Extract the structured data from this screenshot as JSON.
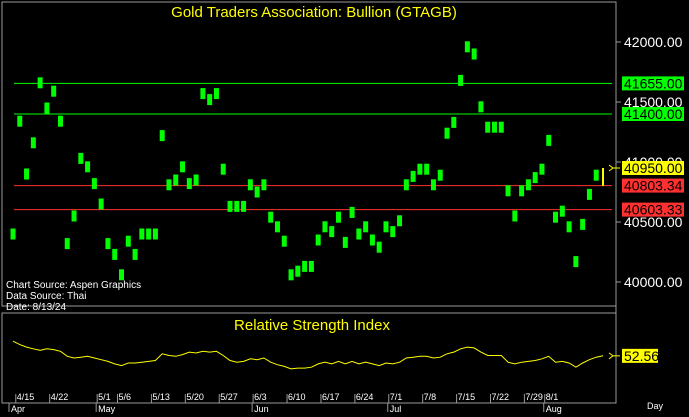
{
  "chart_data": [
    {
      "type": "bar",
      "title": "Gold Traders Association: Bullion (GTAGB)",
      "yticks": [
        "42000.00",
        "41500.00",
        "41000.00",
        "40500.00",
        "40000.00"
      ],
      "ylim": [
        39850,
        42300
      ],
      "grid": false,
      "x": [
        "4/12",
        "4/15",
        "4/16",
        "4/17",
        "4/18",
        "4/19",
        "4/22",
        "4/23",
        "4/24",
        "4/25",
        "4/26",
        "4/29",
        "4/30",
        "5/1",
        "5/2",
        "5/3",
        "5/6",
        "5/7",
        "5/8",
        "5/9",
        "5/10",
        "5/13",
        "5/14",
        "5/15",
        "5/16",
        "5/17",
        "5/20",
        "5/21",
        "5/22",
        "5/23",
        "5/24",
        "5/27",
        "5/28",
        "5/29",
        "5/30",
        "5/31",
        "6/3",
        "6/4",
        "6/5",
        "6/6",
        "6/7",
        "6/10",
        "6/11",
        "6/12",
        "6/13",
        "6/14",
        "6/17",
        "6/18",
        "6/19",
        "6/20",
        "6/21",
        "6/24",
        "6/25",
        "6/26",
        "6/27",
        "6/28",
        "7/1",
        "7/2",
        "7/3",
        "7/4",
        "7/5",
        "7/8",
        "7/9",
        "7/10",
        "7/11",
        "7/12",
        "7/15",
        "7/16",
        "7/17",
        "7/18",
        "7/19",
        "7/22",
        "7/23",
        "7/24",
        "7/25",
        "7/26",
        "7/29",
        "7/30",
        "7/31",
        "8/1",
        "8/2",
        "8/5",
        "8/6",
        "8/7",
        "8/8",
        "8/9",
        "8/12",
        "8/13"
      ],
      "values": [
        40400,
        41340,
        40900,
        41160,
        41660,
        41450,
        41590,
        41340,
        40320,
        40550,
        41030,
        40960,
        40820,
        40650,
        40320,
        40230,
        40060,
        40340,
        40230,
        40400,
        40400,
        40400,
        41220,
        40810,
        40850,
        40960,
        40820,
        40850,
        41570,
        41520,
        41570,
        40940,
        40630,
        40630,
        40630,
        40810,
        40750,
        40810,
        40540,
        40460,
        40340,
        40060,
        40090,
        40130,
        40130,
        40350,
        40460,
        40420,
        40540,
        40330,
        40580,
        40400,
        40460,
        40350,
        40290,
        40460,
        40420,
        40510,
        40810,
        40880,
        40940,
        40940,
        40810,
        40890,
        41240,
        41330,
        41680,
        41960,
        41900,
        41460,
        41290,
        41290,
        41290,
        40760,
        40550,
        40760,
        40810,
        40870,
        40940,
        41180,
        40540,
        40590,
        40460,
        40170,
        40480,
        40730,
        40890,
        40950
      ],
      "last_value": "40950.00",
      "hlines": [
        {
          "value": 41655,
          "label": "41655.00",
          "color": "#00ff00"
        },
        {
          "value": 41400,
          "label": "41400.00",
          "color": "#00ff00"
        },
        {
          "value": 40803.34,
          "label": "40803.34",
          "color": "#ff3030"
        },
        {
          "value": 40603.33,
          "label": "40603.33",
          "color": "#ff3030"
        }
      ],
      "bar_color": "#00ff00",
      "last_bar_color": "#ffff00",
      "source_lines": [
        "Chart Source: Aspen Graphics",
        "Data Source: Thai",
        "Date: 8/13/24"
      ]
    },
    {
      "type": "line",
      "title": "Relative Strength Index",
      "ylim": [
        0,
        100
      ],
      "grid": false,
      "color": "#ffff00",
      "values": [
        70,
        66,
        63,
        61,
        59,
        61,
        60,
        58,
        52,
        50,
        51,
        52,
        50,
        48,
        46,
        43,
        41,
        44,
        44,
        45,
        46,
        47,
        55,
        53,
        52,
        54,
        57,
        56,
        58,
        57,
        58,
        53,
        47,
        45,
        46,
        49,
        48,
        50,
        45,
        42,
        40,
        37,
        38,
        38,
        39,
        43,
        45,
        43,
        46,
        43,
        46,
        43,
        45,
        43,
        41,
        44,
        43,
        45,
        50,
        51,
        52,
        52,
        50,
        51,
        55,
        57,
        61,
        63,
        62,
        57,
        53,
        53,
        53,
        45,
        43,
        45,
        46,
        47,
        49,
        52,
        45,
        46,
        44,
        39,
        44,
        48,
        51,
        52.56
      ],
      "last_value": "52.56"
    }
  ],
  "x_axis": {
    "date_labels": [
      "4/15",
      "4/22",
      "5/1",
      "5/6",
      "5/13",
      "5/20",
      "5/27",
      "6/3",
      "6/10",
      "6/17",
      "6/24",
      "7/1",
      "7/8",
      "7/15",
      "7/22",
      "7/29",
      "8/1"
    ],
    "month_labels": [
      "Apr",
      "May",
      "Jun",
      "Jul",
      "Aug"
    ],
    "unit_label": "Day"
  }
}
